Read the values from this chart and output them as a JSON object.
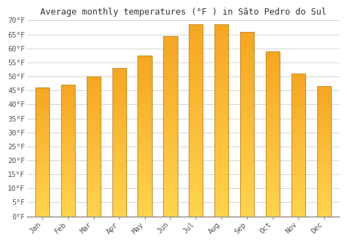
{
  "title": "Average monthly temperatures (°F ) in Sãto Pedro do Sul",
  "months": [
    "Jan",
    "Feb",
    "Mar",
    "Apr",
    "May",
    "Jun",
    "Jul",
    "Aug",
    "Sep",
    "Oct",
    "Nov",
    "Dec"
  ],
  "values": [
    46,
    47,
    50,
    53,
    57.5,
    64.5,
    68.5,
    68.5,
    66,
    59,
    51,
    46.5
  ],
  "bar_color_orange": "#F5A623",
  "bar_color_yellow": "#FFD44F",
  "bar_edge_color": "#C8922A",
  "ylim": [
    0,
    70
  ],
  "ytick_step": 5,
  "background_color": "#ffffff",
  "grid_color": "#cccccc",
  "title_fontsize": 9,
  "tick_fontsize": 7.5,
  "tick_font": "monospace",
  "bar_width": 0.55
}
